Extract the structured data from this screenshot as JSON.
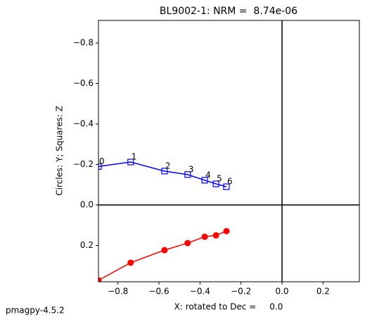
{
  "chart_data": {
    "type": "zijderveld",
    "title": "BL9002-1: NRM =  8.74e-06",
    "xlabel": "X: rotated to Dec =     0.0",
    "ylabel": "Circles: Y; Squares: Z",
    "x": [
      -0.895,
      -0.738,
      -0.573,
      -0.46,
      -0.377,
      -0.322,
      -0.271
    ],
    "point_labels": [
      "0",
      "1",
      "2",
      "3",
      "4",
      "5",
      "6"
    ],
    "series": [
      {
        "marker": "circle",
        "color": "#ff0000",
        "values": [
          0.372,
          0.285,
          0.223,
          0.188,
          0.157,
          0.15,
          0.129
        ]
      },
      {
        "marker": "square",
        "color": "#0000ff",
        "values": [
          -0.19,
          -0.212,
          -0.167,
          -0.15,
          -0.122,
          -0.104,
          -0.09
        ]
      }
    ],
    "xlim": [
      -0.895,
      0.377
    ],
    "ylim": [
      0.379,
      -0.911
    ],
    "xticks": [
      {
        "value": -0.8,
        "label": "−0.8"
      },
      {
        "value": -0.6,
        "label": "−0.6"
      },
      {
        "value": -0.4,
        "label": "−0.4"
      },
      {
        "value": -0.2,
        "label": "−0.2"
      },
      {
        "value": 0,
        "label": "0.0"
      },
      {
        "value": 0.2,
        "label": "0.2"
      }
    ],
    "yticks": [
      {
        "value": -0.8,
        "label": "−0.8"
      },
      {
        "value": -0.6,
        "label": "−0.6"
      },
      {
        "value": -0.4,
        "label": "−0.4"
      },
      {
        "value": -0.2,
        "label": "−0.2"
      },
      {
        "value": 0,
        "label": "0.0"
      },
      {
        "value": 0.2,
        "label": "0.2"
      }
    ]
  },
  "footer": "pmagpy-4.5.2"
}
